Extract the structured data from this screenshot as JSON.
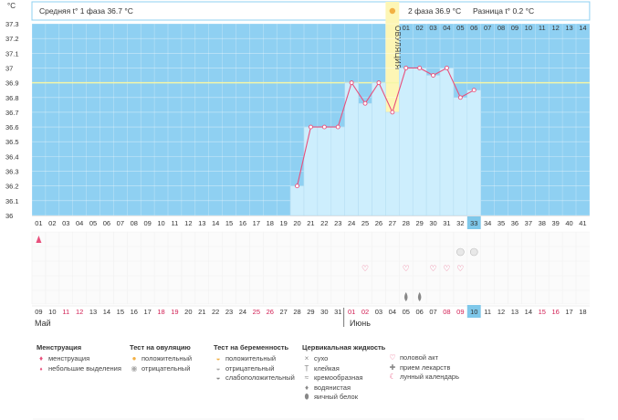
{
  "header": {
    "unit": "°C",
    "phase1": "Средняя t° 1 фаза 36.7 °C",
    "phase2": "2 фаза 36.9 °C",
    "diff": "Разница t° 0.2 °C",
    "ovulation_label": "ОВУЛЯЦИЯ"
  },
  "chart_data": {
    "type": "line",
    "ylim": [
      36.0,
      37.3
    ],
    "yticks": [
      "36",
      "36.1",
      "36.2",
      "36.3",
      "36.4",
      "36.5",
      "36.6",
      "36.7",
      "36.8",
      "36.9",
      "37",
      "37.1",
      "37.2",
      "37.3"
    ],
    "cycle_days": [
      "01",
      "02",
      "03",
      "04",
      "05",
      "06",
      "07",
      "08",
      "09",
      "10",
      "11",
      "12",
      "13",
      "14",
      "15",
      "16",
      "17",
      "18",
      "19",
      "20",
      "21",
      "22",
      "23",
      "24",
      "25",
      "26",
      "27",
      "28",
      "29",
      "30",
      "31",
      "32",
      "33",
      "34",
      "35",
      "36",
      "37",
      "38",
      "39",
      "40",
      "41"
    ],
    "top_days": [
      "01",
      "02",
      "03",
      "04",
      "05",
      "06",
      "07",
      "08",
      "09",
      "10",
      "11",
      "12",
      "13",
      "14"
    ],
    "calendar_dates": [
      "09",
      "10",
      "11",
      "12",
      "13",
      "14",
      "15",
      "16",
      "17",
      "18",
      "19",
      "20",
      "21",
      "22",
      "23",
      "24",
      "25",
      "26",
      "27",
      "28",
      "29",
      "30",
      "31",
      "01",
      "02",
      "03",
      "04",
      "05",
      "06",
      "07",
      "08",
      "09",
      "10",
      "11",
      "12",
      "13",
      "14",
      "15",
      "16",
      "17",
      "18"
    ],
    "weekend_dates": [
      2,
      3,
      9,
      10,
      16,
      17,
      23,
      24,
      30,
      31,
      37,
      38
    ],
    "current_day_index": 32,
    "ovulation_day": 27,
    "coverline": 36.9,
    "series": [
      {
        "x": [
          20,
          21,
          22,
          23,
          24,
          25,
          26,
          27,
          28,
          29,
          30,
          31,
          32,
          33
        ],
        "values": [
          36.2,
          36.6,
          36.6,
          36.6,
          36.9,
          36.76,
          36.9,
          36.7,
          37.0,
          37.0,
          36.95,
          37.0,
          36.8,
          36.85
        ]
      }
    ],
    "markers": {
      "menstruation_day": 1,
      "intercourse_days": [
        25,
        28,
        30,
        31,
        32
      ],
      "test_negative_days": [
        32,
        33
      ],
      "egg_white_days": [
        28,
        29
      ]
    },
    "months": [
      "Май",
      "Июнь"
    ]
  },
  "legend": {
    "menstruation": {
      "title": "Менструация",
      "items": [
        "менструация",
        "небольшие выделения"
      ]
    },
    "ovulation_test": {
      "title": "Тест на овуляцию",
      "items": [
        "положительный",
        "отрицательный"
      ]
    },
    "pregnancy_test": {
      "title": "Тест на беременность",
      "items": [
        "положительный",
        "отрицательный",
        "слабоположительный"
      ]
    },
    "cervical_fluid": {
      "title": "Цервикальная жидкость",
      "items": [
        "сухо",
        "клейкая",
        "кремообразная",
        "водянистая",
        "яичный белок"
      ]
    },
    "other": {
      "items": [
        "половой акт",
        "прием лекарств",
        "лунный календарь"
      ]
    }
  },
  "colors": {
    "sky": "#8fd0f2",
    "bar": "#cdeefd",
    "ovulation": "#fdf6b5",
    "line": "#e8507c",
    "current": "#7fc8ea",
    "weekend": "#d22055"
  }
}
